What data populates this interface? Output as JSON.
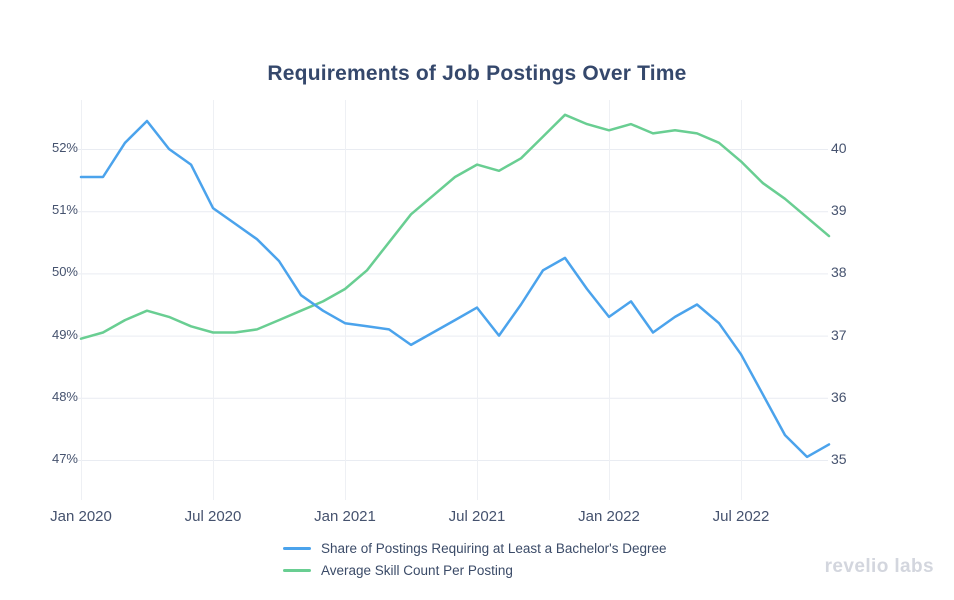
{
  "title": "Requirements of Job Postings Over Time",
  "logo": {
    "text": "revelio labs"
  },
  "chart_data": {
    "type": "line",
    "title": "Requirements of Job Postings Over Time",
    "grid": true,
    "legend_position": "bottom",
    "x": [
      "Jan 2020",
      "Feb 2020",
      "Mar 2020",
      "Apr 2020",
      "May 2020",
      "Jun 2020",
      "Jul 2020",
      "Aug 2020",
      "Sep 2020",
      "Oct 2020",
      "Nov 2020",
      "Dec 2020",
      "Jan 2021",
      "Feb 2021",
      "Mar 2021",
      "Apr 2021",
      "May 2021",
      "Jun 2021",
      "Jul 2021",
      "Aug 2021",
      "Sep 2021",
      "Oct 2021",
      "Nov 2021",
      "Dec 2021",
      "Jan 2022",
      "Feb 2022",
      "Mar 2022",
      "Apr 2022",
      "May 2022",
      "Jun 2022",
      "Jul 2022",
      "Aug 2022",
      "Sep 2022",
      "Oct 2022",
      "Nov 2022"
    ],
    "x_ticks": [
      {
        "index": 0,
        "label": "Jan 2020"
      },
      {
        "index": 6,
        "label": "Jul 2020"
      },
      {
        "index": 12,
        "label": "Jan 2021"
      },
      {
        "index": 18,
        "label": "Jul 2021"
      },
      {
        "index": 24,
        "label": "Jan 2022"
      },
      {
        "index": 30,
        "label": "Jul 2022"
      }
    ],
    "left_axis": {
      "ticks": [
        "47%",
        "48%",
        "49%",
        "50%",
        "51%",
        "52%"
      ],
      "tick_values": [
        47,
        48,
        49,
        50,
        51,
        52
      ],
      "ylim": [
        46.7,
        52.7
      ],
      "unit": "%"
    },
    "right_axis": {
      "ticks": [
        "35",
        "36",
        "37",
        "38",
        "39",
        "40"
      ],
      "tick_values": [
        35,
        36,
        37,
        38,
        39,
        40
      ],
      "ylim": [
        34.7,
        40.7
      ]
    },
    "series": [
      {
        "name": "Share of Postings Requiring at Least a Bachelor's Degree",
        "axis": "left",
        "color": "#4BA3EC",
        "values": [
          51.55,
          51.55,
          52.1,
          52.45,
          52.0,
          51.75,
          51.05,
          50.8,
          50.55,
          50.2,
          49.65,
          49.4,
          49.2,
          49.15,
          49.1,
          48.85,
          49.05,
          49.25,
          49.45,
          49.0,
          49.5,
          50.05,
          50.25,
          49.75,
          49.3,
          49.55,
          49.05,
          49.3,
          49.5,
          49.2,
          48.7,
          48.05,
          47.4,
          47.05,
          47.25
        ]
      },
      {
        "name": "Average Skill Count Per Posting",
        "axis": "right",
        "color": "#69CE92",
        "values": [
          36.95,
          37.05,
          37.25,
          37.4,
          37.3,
          37.15,
          37.05,
          37.05,
          37.1,
          37.25,
          37.4,
          37.55,
          37.75,
          38.05,
          38.5,
          38.95,
          39.25,
          39.55,
          39.75,
          39.65,
          39.85,
          40.2,
          40.55,
          40.4,
          40.3,
          40.4,
          40.25,
          40.3,
          40.25,
          40.1,
          39.8,
          39.45,
          39.2,
          38.9,
          38.6
        ]
      }
    ]
  }
}
